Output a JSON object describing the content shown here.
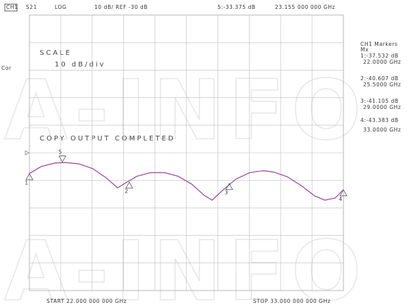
{
  "chart_data": {
    "type": "line",
    "header": {
      "channel": "CH1",
      "param": "S21",
      "format": "LOG",
      "scale": "10 dB/ REF -30 dB",
      "active_value": "5:-33.375 dB",
      "active_freq": "23.155 000 000 GHz"
    },
    "left_label": "Cor",
    "scale_title": "SCALE",
    "scale_value": "10 dB/div",
    "message": "COPY OUTPUT COMPLETED",
    "marker_panel_title": "CH1 Markers",
    "marker_panel_sub": "Mx",
    "start_label": "START 22.000 000 000 GHz",
    "stop_label": "STOP 33.000 000 000 GHz",
    "watermark": "A-INFO",
    "color": "#9a3c9a",
    "x": [
      22.0,
      22.41,
      22.89,
      23.25,
      23.73,
      24.21,
      24.68,
      25.09,
      25.41,
      25.77,
      26.25,
      26.73,
      27.21,
      27.69,
      28.12,
      28.4,
      28.76,
      29.24,
      29.72,
      30.2,
      30.56,
      31.04,
      31.52,
      32.0,
      32.35,
      32.71,
      33.0
    ],
    "values": [
      -37.5,
      -35.0,
      -33.7,
      -33.5,
      -34.0,
      -35.7,
      -39.0,
      -42.7,
      -40.7,
      -38.5,
      -37.2,
      -37.2,
      -38.5,
      -41.4,
      -45.4,
      -47.2,
      -43.7,
      -39.5,
      -37.2,
      -36.5,
      -37.0,
      -38.7,
      -41.9,
      -45.7,
      -47.2,
      -46.4,
      -43.4
    ],
    "xlim": [
      22,
      33
    ],
    "xticks": [
      22,
      23.1,
      24.2,
      25.3,
      26.4,
      27.5,
      28.6,
      29.7,
      30.8,
      31.9,
      33
    ],
    "ylim": [
      -80,
      20
    ],
    "yticks": [
      -80,
      -70,
      -60,
      -50,
      -40,
      -30,
      -20,
      -10,
      0,
      10,
      20
    ],
    "reference": -30,
    "grid": true,
    "markers": [
      {
        "id": "1",
        "freq": 22,
        "value": -37.532,
        "value_label": "1:-37.532 dB",
        "freq_label": "22.0000 GHz"
      },
      {
        "id": "2",
        "freq": 25.5,
        "value": -40.607,
        "value_label": "2:-40.607 dB",
        "freq_label": "25.5000 GHz"
      },
      {
        "id": "3",
        "freq": 29,
        "value": -41.105,
        "value_label": "3:-41.105 dB",
        "freq_label": "29.0000 GHz"
      },
      {
        "id": "4",
        "freq": 33,
        "value": -43.383,
        "value_label": "4:-43.383 dB",
        "freq_label": "33.0000 GHz"
      },
      {
        "id": "5",
        "freq": 23.155,
        "value": -33.375
      }
    ]
  }
}
